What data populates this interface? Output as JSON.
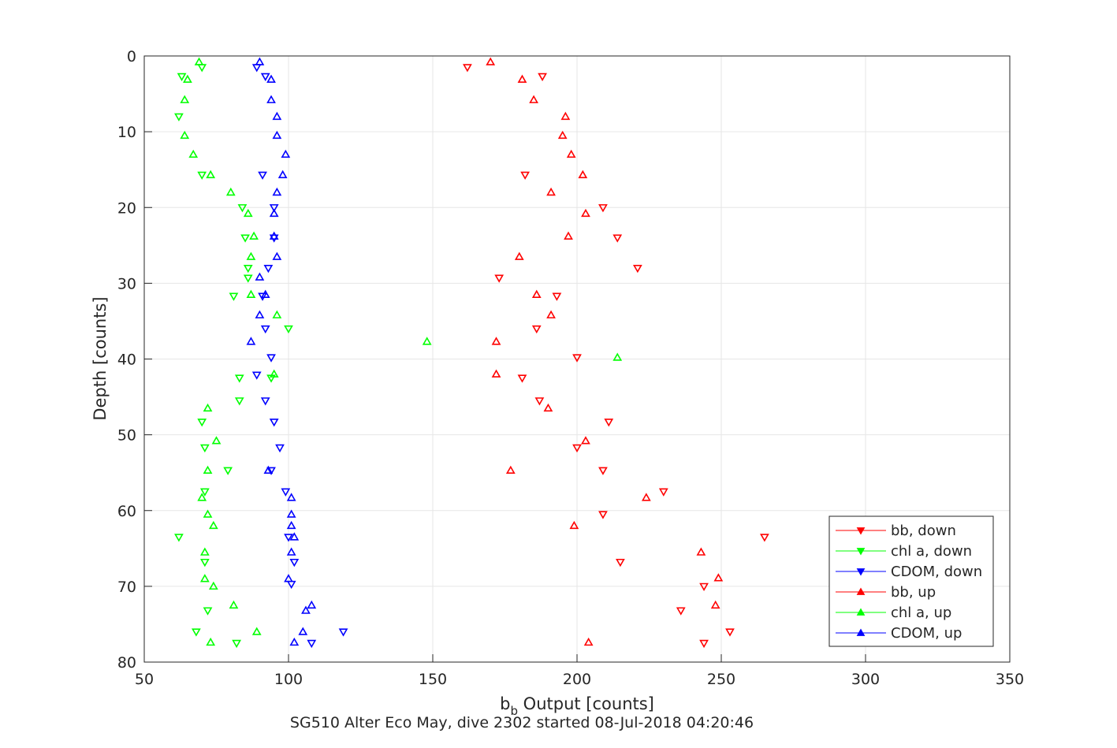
{
  "chart_data": {
    "type": "scatter",
    "title": "SG510 Alter Eco May, dive 2302 started 08-Jul-2018 04:20:46",
    "xlabel_main": "b",
    "xlabel_sub": "b",
    "xlabel_rest": " Output [counts]",
    "ylabel": "Depth [counts]",
    "xlim": [
      50,
      350
    ],
    "ylim": [
      0,
      80
    ],
    "y_reversed": true,
    "grid": true,
    "legend_position": "bottom-right",
    "x_ticks": [
      "50",
      "100",
      "150",
      "200",
      "250",
      "300",
      "350"
    ],
    "y_ticks": [
      "0",
      "10",
      "20",
      "30",
      "40",
      "50",
      "60",
      "70",
      "80"
    ],
    "series": [
      {
        "name": "bb, down",
        "color": "#ff0000",
        "marker": "triangle-down",
        "points": [
          [
            162,
            1.5
          ],
          [
            188,
            2.7
          ],
          [
            182,
            15.7
          ],
          [
            209,
            20
          ],
          [
            214,
            24
          ],
          [
            221,
            28
          ],
          [
            173,
            29.3
          ],
          [
            193,
            31.7
          ],
          [
            186,
            36
          ],
          [
            200,
            39.8
          ],
          [
            181,
            42.5
          ],
          [
            187,
            45.5
          ],
          [
            211,
            48.3
          ],
          [
            200,
            51.7
          ],
          [
            209,
            54.7
          ],
          [
            230,
            57.5
          ],
          [
            209,
            60.5
          ],
          [
            265,
            63.5
          ],
          [
            215,
            66.8
          ],
          [
            244,
            70
          ],
          [
            236,
            73.2
          ],
          [
            253,
            76
          ],
          [
            244,
            77.5
          ]
        ]
      },
      {
        "name": "chl a, down",
        "color": "#00ff00",
        "marker": "triangle-down",
        "points": [
          [
            70,
            1.5
          ],
          [
            63,
            2.7
          ],
          [
            62,
            8
          ],
          [
            70,
            15.7
          ],
          [
            84,
            20
          ],
          [
            85,
            24
          ],
          [
            86,
            28
          ],
          [
            86,
            29.3
          ],
          [
            81,
            31.7
          ],
          [
            100,
            36
          ],
          [
            94,
            42.5
          ],
          [
            83,
            42.5
          ],
          [
            83,
            45.5
          ],
          [
            70,
            48.3
          ],
          [
            71,
            51.7
          ],
          [
            79,
            54.7
          ],
          [
            71,
            57.5
          ],
          [
            62,
            63.5
          ],
          [
            71,
            66.8
          ],
          [
            72,
            73.2
          ],
          [
            68,
            76
          ],
          [
            82,
            77.5
          ]
        ]
      },
      {
        "name": "CDOM, down",
        "color": "#0000ff",
        "marker": "triangle-down",
        "points": [
          [
            89,
            1.5
          ],
          [
            92,
            2.7
          ],
          [
            91,
            15.7
          ],
          [
            95,
            20
          ],
          [
            95,
            24
          ],
          [
            93,
            28
          ],
          [
            91,
            31.7
          ],
          [
            92,
            36
          ],
          [
            94,
            39.8
          ],
          [
            89,
            42.1
          ],
          [
            92,
            45.5
          ],
          [
            95,
            48.3
          ],
          [
            97,
            51.7
          ],
          [
            94,
            54.7
          ],
          [
            99,
            57.5
          ],
          [
            100,
            63.5
          ],
          [
            102,
            66.8
          ],
          [
            101,
            69.7
          ],
          [
            119,
            76
          ],
          [
            108,
            77.5
          ]
        ]
      },
      {
        "name": "bb, up",
        "color": "#ff0000",
        "marker": "triangle-up",
        "points": [
          [
            170,
            0.8
          ],
          [
            181,
            3.1
          ],
          [
            185,
            5.8
          ],
          [
            196,
            8
          ],
          [
            195,
            10.5
          ],
          [
            198,
            13
          ],
          [
            202,
            15.7
          ],
          [
            191,
            18
          ],
          [
            203,
            20.8
          ],
          [
            197,
            23.8
          ],
          [
            180,
            26.5
          ],
          [
            186,
            31.5
          ],
          [
            191,
            34.2
          ],
          [
            172,
            37.7
          ],
          [
            172,
            42
          ],
          [
            190,
            46.5
          ],
          [
            203,
            50.8
          ],
          [
            177,
            54.7
          ],
          [
            224,
            58.3
          ],
          [
            199,
            62
          ],
          [
            243,
            65.5
          ],
          [
            249,
            68.9
          ],
          [
            248,
            72.5
          ],
          [
            204,
            77.4
          ]
        ]
      },
      {
        "name": "chl a, up",
        "color": "#00ff00",
        "marker": "triangle-up",
        "points": [
          [
            69,
            0.8
          ],
          [
            65,
            3.1
          ],
          [
            64,
            5.8
          ],
          [
            64,
            10.5
          ],
          [
            67,
            13
          ],
          [
            73,
            15.7
          ],
          [
            80,
            18
          ],
          [
            86,
            20.8
          ],
          [
            88,
            23.8
          ],
          [
            87,
            26.5
          ],
          [
            87,
            31.5
          ],
          [
            96,
            34.2
          ],
          [
            148,
            37.7
          ],
          [
            214,
            39.8
          ],
          [
            95,
            42
          ],
          [
            72,
            46.5
          ],
          [
            75,
            50.8
          ],
          [
            72,
            54.7
          ],
          [
            70,
            58.3
          ],
          [
            72,
            60.5
          ],
          [
            74,
            62
          ],
          [
            71,
            65.5
          ],
          [
            71,
            69
          ],
          [
            74,
            70
          ],
          [
            81,
            72.5
          ],
          [
            89,
            76
          ],
          [
            73,
            77.4
          ]
        ]
      },
      {
        "name": "CDOM, up",
        "color": "#0000ff",
        "marker": "triangle-up",
        "points": [
          [
            90,
            0.8
          ],
          [
            94,
            3.1
          ],
          [
            94,
            5.8
          ],
          [
            96,
            8
          ],
          [
            96,
            10.5
          ],
          [
            99,
            13
          ],
          [
            98,
            15.7
          ],
          [
            96,
            18
          ],
          [
            95,
            20.8
          ],
          [
            95,
            23.8
          ],
          [
            96,
            26.5
          ],
          [
            90,
            29.2
          ],
          [
            92,
            31.5
          ],
          [
            90,
            34.2
          ],
          [
            87,
            37.7
          ],
          [
            101,
            58.3
          ],
          [
            101,
            60.5
          ],
          [
            101,
            62
          ],
          [
            102,
            63.5
          ],
          [
            101,
            65.5
          ],
          [
            100,
            69
          ],
          [
            108,
            72.5
          ],
          [
            106,
            73.2
          ],
          [
            105,
            76
          ],
          [
            102,
            77.4
          ],
          [
            93,
            54.7
          ]
        ]
      }
    ]
  }
}
